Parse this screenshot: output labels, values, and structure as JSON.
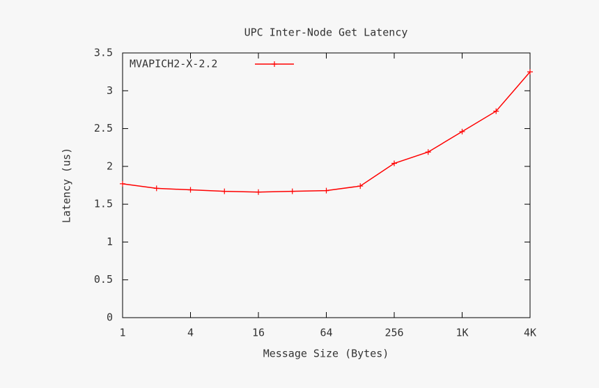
{
  "chart_data": {
    "type": "line",
    "title": "UPC Inter-Node Get Latency",
    "x_label": "Message Size (Bytes)",
    "y_label": "Latency (us)",
    "x": [
      1,
      2,
      4,
      8,
      16,
      32,
      64,
      128,
      256,
      512,
      1024,
      2048,
      4096
    ],
    "series": [
      {
        "name": "MVAPICH2-X-2.2",
        "color": "#ff0000",
        "values": [
          1.77,
          1.71,
          1.69,
          1.67,
          1.66,
          1.67,
          1.68,
          1.74,
          2.04,
          2.19,
          2.46,
          2.73,
          3.25
        ]
      }
    ],
    "xscale": "log2",
    "xlim": [
      1,
      4096
    ],
    "xticks": [
      1,
      4,
      16,
      64,
      256,
      {
        "value": 1024,
        "label": "1K"
      },
      {
        "value": 4096,
        "label": "4K"
      }
    ],
    "ylim": [
      0,
      3.5
    ],
    "yticks": [
      0,
      0.5,
      1,
      1.5,
      2,
      2.5,
      3,
      3.5
    ],
    "legend": "top-left"
  }
}
